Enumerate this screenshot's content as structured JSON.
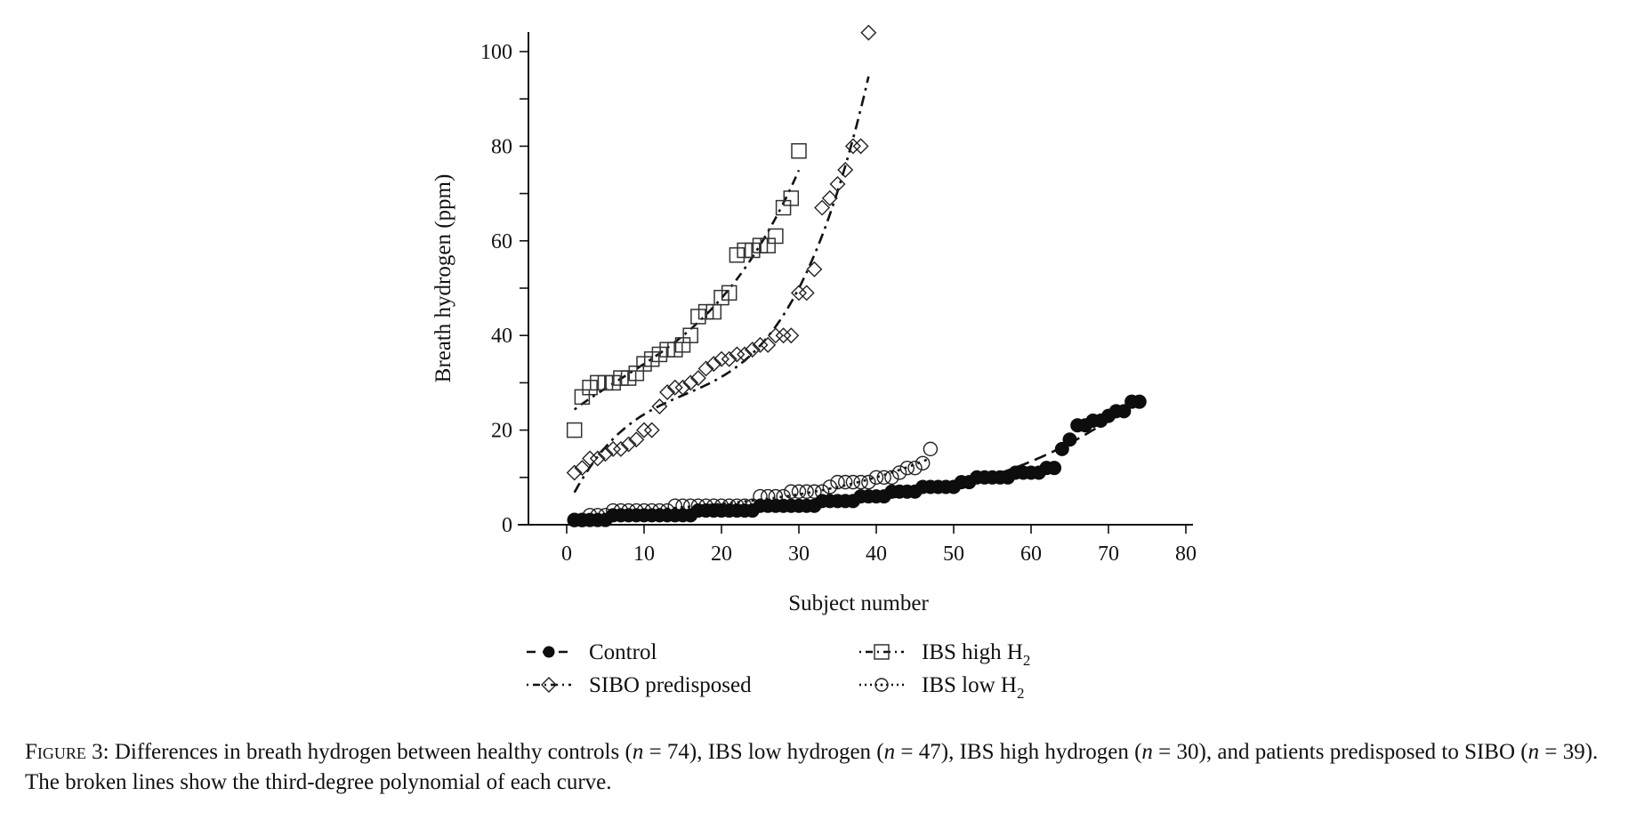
{
  "chart_data": {
    "type": "scatter",
    "title": "",
    "xlabel": "Subject number",
    "ylabel": "Breath hydrogen (ppm)",
    "xlim": [
      -5,
      80
    ],
    "ylim": [
      0,
      105
    ],
    "xticks": [
      0,
      10,
      20,
      30,
      40,
      50,
      60,
      70,
      80
    ],
    "yticks": [
      0,
      20,
      40,
      60,
      80,
      100
    ],
    "y_minor_step": 10,
    "grid": false,
    "legend_position": "bottom",
    "series": [
      {
        "name": "Control",
        "n": 74,
        "marker": "filled-circle",
        "fit_line": "dashed",
        "fit": "third-degree polynomial",
        "values": [
          1,
          1,
          1,
          1,
          1,
          2,
          2,
          2,
          2,
          2,
          2,
          2,
          2,
          2,
          2,
          2,
          3,
          3,
          3,
          3,
          3,
          3,
          3,
          3,
          4,
          4,
          4,
          4,
          4,
          4,
          4,
          4,
          5,
          5,
          5,
          5,
          5,
          6,
          6,
          6,
          6,
          7,
          7,
          7,
          7,
          8,
          8,
          8,
          8,
          8,
          9,
          9,
          10,
          10,
          10,
          10,
          10,
          11,
          11,
          11,
          11,
          12,
          12,
          16,
          18,
          21,
          21,
          22,
          22,
          23,
          24,
          24,
          26,
          26
        ]
      },
      {
        "name": "SIBO predisposed",
        "n": 39,
        "marker": "open-diamond",
        "fit_line": "dash-dot",
        "fit": "third-degree polynomial",
        "values": [
          11,
          12,
          14,
          14,
          15,
          16,
          16,
          17,
          18,
          20,
          20,
          25,
          28,
          29,
          29,
          30,
          31,
          33,
          34,
          35,
          35,
          36,
          36,
          37,
          38,
          38,
          40,
          40,
          40,
          49,
          49,
          54,
          67,
          69,
          72,
          75,
          80,
          80,
          104
        ]
      },
      {
        "name": "IBS high H2",
        "n": 30,
        "marker": "open-square",
        "fit_line": "dot-dash",
        "fit": "third-degree polynomial",
        "values": [
          20,
          27,
          29,
          30,
          30,
          30,
          31,
          31,
          32,
          34,
          35,
          36,
          37,
          37,
          38,
          40,
          44,
          45,
          45,
          48,
          49,
          57,
          58,
          58,
          59,
          59,
          61,
          67,
          69,
          79
        ]
      },
      {
        "name": "IBS low H2",
        "n": 47,
        "marker": "open-circle",
        "fit_line": "dotted",
        "fit": "third-degree polynomial",
        "values": [
          1,
          1,
          2,
          2,
          2,
          3,
          3,
          3,
          3,
          3,
          3,
          3,
          3,
          4,
          4,
          4,
          4,
          4,
          4,
          4,
          4,
          4,
          4,
          4,
          6,
          6,
          6,
          6,
          7,
          7,
          7,
          7,
          7,
          8,
          9,
          9,
          9,
          9,
          9,
          10,
          10,
          10,
          11,
          12,
          12,
          13,
          16
        ]
      }
    ],
    "legend": [
      {
        "label": "Control",
        "sub": ""
      },
      {
        "label": "IBS high H",
        "sub": "2"
      },
      {
        "label": "SIBO predisposed",
        "sub": ""
      },
      {
        "label": "IBS low H",
        "sub": "2"
      }
    ]
  },
  "caption": {
    "figure_label": "Figure 3:",
    "part1": " Differences in breath hydrogen between healthy controls (",
    "n1": "n",
    "v1": " = 74), IBS low hydrogen (",
    "n2": "n",
    "v2": " = 47), IBS high hydrogen (",
    "n3": "n",
    "v3": " = 30), and patients predisposed to SIBO (",
    "n4": "n",
    "v4": " = 39). The broken lines show the third-degree polynomial of each curve."
  }
}
